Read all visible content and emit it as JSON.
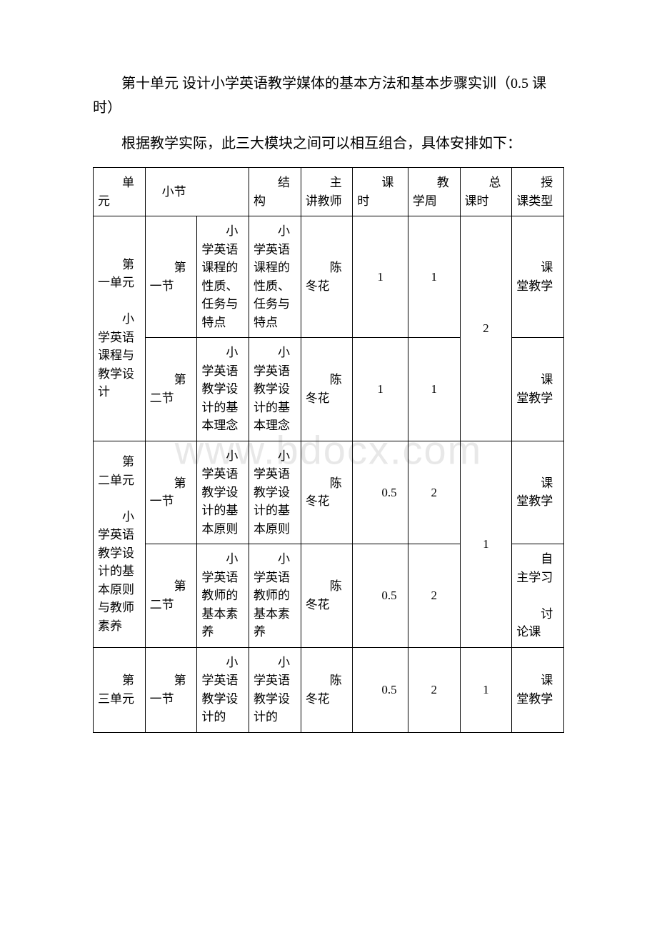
{
  "paragraphs": {
    "p1": "第十单元 设计小学英语教学媒体的基本方法和基本步骤实训（0.5 课时）",
    "p2": "根据教学实际，此三大模块之间可以相互组合，具体安排如下："
  },
  "watermark": "www.bdocx.com",
  "table": {
    "headers": {
      "unit": "单元",
      "section": "小节",
      "structure": "结构",
      "teacher": "主讲教师",
      "hours": "课时",
      "week": "教学周",
      "total": "总课时",
      "type": "授课类型"
    },
    "cells": {
      "unit1_name": "第一单元",
      "unit1_title": "小学英语课程与教学设计",
      "unit1_sec1_label": "第一节",
      "unit1_sec1_sub": "小学英语课程的性质、任务与特点",
      "unit1_sec1_struct": "小学英语课程的性质、任务与特点",
      "unit1_sec1_teacher": "陈冬花",
      "unit1_sec1_hours": "1",
      "unit1_sec1_week": "1",
      "unit1_total": "2",
      "unit1_sec1_type": "课堂教学",
      "unit1_sec2_label": "第二节",
      "unit1_sec2_sub": "小学英语教学设计的基本理念",
      "unit1_sec2_struct": "小学英语教学设计的基本理念",
      "unit1_sec2_teacher": "陈冬花",
      "unit1_sec2_hours": "1",
      "unit1_sec2_week": "1",
      "unit1_sec2_type": "课堂教学",
      "unit2_name": "第二单元",
      "unit2_title": "小学英语教学设计的基本原则与教师素养",
      "unit2_sec1_label": "第一节",
      "unit2_sec1_sub": "小学英语教学设计的基本原则",
      "unit2_sec1_struct": "小学英语教学设计的基本原则",
      "unit2_sec1_teacher": "陈冬花",
      "unit2_sec1_hours": "0.5",
      "unit2_sec1_week": "2",
      "unit2_total": "1",
      "unit2_sec1_type": "课堂教学",
      "unit2_sec2_label": "第二节",
      "unit2_sec2_sub": "小学英语教师的基本素养",
      "unit2_sec2_struct": "小学英语教师的基本素养",
      "unit2_sec2_teacher": "陈冬花",
      "unit2_sec2_hours": "0.5",
      "unit2_sec2_week": "2",
      "unit2_sec2_type_line1": "自主学习",
      "unit2_sec2_type_line2": "讨论课",
      "unit3_name": "第三单元",
      "unit3_sec1_label": "第一节",
      "unit3_sec1_sub": "小学英语教学设计的",
      "unit3_sec1_struct": "小学英语教学设计的",
      "unit3_sec1_teacher": "陈冬花",
      "unit3_sec1_hours": "0.5",
      "unit3_sec1_week": "2",
      "unit3_total": "1",
      "unit3_sec1_type": "课堂教学"
    }
  }
}
